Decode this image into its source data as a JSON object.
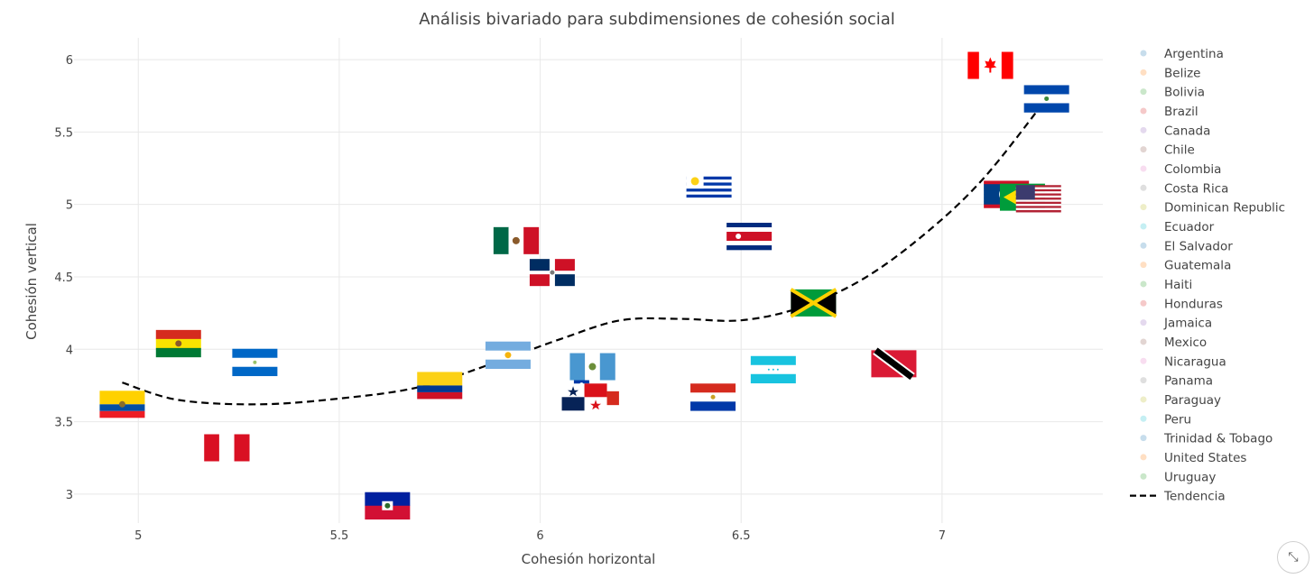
{
  "chart_data": {
    "type": "scatter",
    "title": "Análisis bivariado para subdimensiones de cohesión social",
    "xlabel": "Cohesión horizontal",
    "ylabel": "Cohesión vertical",
    "xlim": [
      4.84,
      7.4
    ],
    "ylim": [
      2.8,
      6.15
    ],
    "x_ticks": [
      5,
      5.5,
      6,
      6.5,
      7
    ],
    "x_tick_labels": [
      "5",
      "5.5",
      "6",
      "6.5",
      "7"
    ],
    "y_ticks": [
      3,
      3.5,
      4,
      4.5,
      5,
      5.5,
      6
    ],
    "y_tick_labels": [
      "3",
      "3.5",
      "4",
      "4.5",
      "5",
      "5.5",
      "6"
    ],
    "grid": true,
    "legend_position": "right",
    "marker_style": "country-flag",
    "series": [
      {
        "name": "Argentina",
        "x": 5.92,
        "y": 3.96,
        "color": "#1f77b4"
      },
      {
        "name": "Belize",
        "x": 7.16,
        "y": 5.07,
        "color": "#ff7f0e"
      },
      {
        "name": "Bolivia",
        "x": 5.1,
        "y": 4.04,
        "color": "#2ca02c"
      },
      {
        "name": "Brazil",
        "x": 7.2,
        "y": 5.05,
        "color": "#d62728"
      },
      {
        "name": "Canada",
        "x": 7.12,
        "y": 5.96,
        "color": "#9467bd"
      },
      {
        "name": "Chile",
        "x": 6.14,
        "y": 3.71,
        "color": "#8c564b"
      },
      {
        "name": "Colombia",
        "x": 5.75,
        "y": 3.75,
        "color": "#e377c2"
      },
      {
        "name": "Costa Rica",
        "x": 6.52,
        "y": 4.78,
        "color": "#7f7f7f"
      },
      {
        "name": "Dominican Republic",
        "x": 6.03,
        "y": 4.53,
        "color": "#bcbd22"
      },
      {
        "name": "Ecuador",
        "x": 4.96,
        "y": 3.62,
        "color": "#17becf"
      },
      {
        "name": "El Salvador",
        "x": 7.26,
        "y": 5.73,
        "color": "#1f77b4"
      },
      {
        "name": "Guatemala",
        "x": 6.13,
        "y": 3.88,
        "color": "#ff7f0e"
      },
      {
        "name": "Haiti",
        "x": 5.62,
        "y": 2.92,
        "color": "#2ca02c"
      },
      {
        "name": "Honduras",
        "x": 6.58,
        "y": 3.86,
        "color": "#d62728"
      },
      {
        "name": "Jamaica",
        "x": 6.68,
        "y": 4.32,
        "color": "#9467bd"
      },
      {
        "name": "Mexico",
        "x": 5.94,
        "y": 4.75,
        "color": "#8c564b"
      },
      {
        "name": "Nicaragua",
        "x": 5.29,
        "y": 3.91,
        "color": "#e377c2"
      },
      {
        "name": "Panama",
        "x": 6.11,
        "y": 3.67,
        "color": "#7f7f7f"
      },
      {
        "name": "Paraguay",
        "x": 6.43,
        "y": 3.67,
        "color": "#bcbd22"
      },
      {
        "name": "Peru",
        "x": 5.22,
        "y": 3.32,
        "color": "#17becf"
      },
      {
        "name": "Trinidad & Tobago",
        "x": 6.88,
        "y": 3.9,
        "color": "#1f77b4"
      },
      {
        "name": "United States",
        "x": 7.24,
        "y": 5.04,
        "color": "#ff7f0e"
      },
      {
        "name": "Uruguay",
        "x": 6.42,
        "y": 5.12,
        "color": "#2ca02c"
      }
    ],
    "trend": {
      "name": "Tendencia",
      "style": "dashed",
      "color": "#000000",
      "x": [
        4.96,
        5.1,
        5.3,
        5.5,
        5.7,
        5.9,
        6.05,
        6.2,
        6.35,
        6.5,
        6.65,
        6.8,
        6.95,
        7.1,
        7.26
      ],
      "y": [
        3.77,
        3.65,
        3.62,
        3.66,
        3.74,
        3.92,
        4.07,
        4.2,
        4.21,
        4.2,
        4.29,
        4.48,
        4.78,
        5.17,
        5.73
      ]
    }
  },
  "legend": {
    "items": [
      "Argentina",
      "Belize",
      "Bolivia",
      "Brazil",
      "Canada",
      "Chile",
      "Colombia",
      "Costa Rica",
      "Dominican Republic",
      "Ecuador",
      "El Salvador",
      "Guatemala",
      "Haiti",
      "Honduras",
      "Jamaica",
      "Mexico",
      "Nicaragua",
      "Panama",
      "Paraguay",
      "Peru",
      "Trinidad & Tobago",
      "United States",
      "Uruguay"
    ],
    "trend_label": "Tendencia"
  },
  "controls": {
    "expand_icon": "expand-icon"
  }
}
